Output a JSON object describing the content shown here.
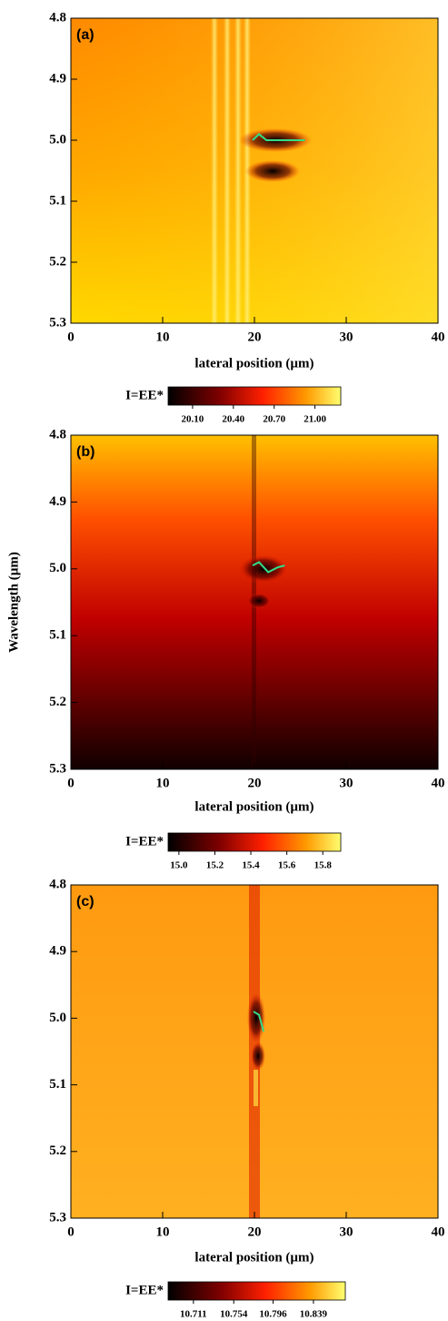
{
  "chart_data": [
    {
      "type": "heatmap",
      "panel_label": "(a)",
      "xlabel": "lateral position (µm)",
      "xlim": [
        0,
        40
      ],
      "xticks": [
        0,
        10,
        20,
        30,
        40
      ],
      "ylim": [
        4.8,
        5.3
      ],
      "y_inverted": true,
      "yticks": [
        4.8,
        4.9,
        {
          "value": 5.0,
          "label": "5.0"
        },
        5.1,
        5.2,
        5.3
      ],
      "colorbar_label": "I=EE*",
      "clim": [
        19.92,
        21.19
      ],
      "cticks": [
        {
          "value": 20.1,
          "label": "20.10"
        },
        {
          "value": 20.4,
          "label": "20.40"
        },
        {
          "value": 20.7,
          "label": "20.70"
        },
        {
          "value": 21.0,
          "label": "21.00"
        }
      ],
      "line": {
        "color": "#33dd88",
        "x": [
          19.8,
          20.5,
          21.3,
          23.5,
          25.5
        ],
        "y": [
          5.0,
          4.99,
          5.0,
          5.0,
          5.0
        ]
      }
    },
    {
      "type": "heatmap",
      "panel_label": "(b)",
      "xlabel": "lateral position (µm)",
      "ylabel": "Wavelength (µm)",
      "xlim": [
        0,
        40
      ],
      "xticks": [
        0,
        10,
        20,
        30,
        40
      ],
      "ylim": [
        4.8,
        5.3
      ],
      "y_inverted": true,
      "yticks": [
        4.8,
        4.9,
        {
          "value": 5.0,
          "label": "5.0"
        },
        5.1,
        5.2,
        5.3
      ],
      "colorbar_label": "I=EE*",
      "clim": [
        14.94,
        15.9
      ],
      "cticks": [
        {
          "value": 15.0,
          "label": "15.0"
        },
        15.2,
        15.4,
        15.6,
        15.8
      ],
      "line": {
        "color": "#33dd88",
        "x": [
          19.8,
          20.5,
          21.5,
          22.5,
          23.3
        ],
        "y": [
          4.995,
          4.99,
          5.005,
          4.998,
          4.995
        ]
      }
    },
    {
      "type": "heatmap",
      "panel_label": "(c)",
      "xlabel": "lateral position (µm)",
      "xlim": [
        0,
        40
      ],
      "xticks": [
        0,
        10,
        20,
        30,
        40
      ],
      "ylim": [
        4.8,
        5.3
      ],
      "y_inverted": true,
      "yticks": [
        4.8,
        4.9,
        {
          "value": 5.0,
          "label": "5.0"
        },
        5.1,
        5.2,
        5.3
      ],
      "colorbar_label": "I=EE*",
      "clim": [
        10.684,
        10.873
      ],
      "cticks": [
        10.711,
        10.754,
        10.796,
        10.839
      ],
      "line": {
        "color": "#33dd88",
        "x": [
          19.9,
          20.5,
          21.0
        ],
        "y": [
          4.99,
          4.995,
          5.02
        ]
      }
    }
  ]
}
